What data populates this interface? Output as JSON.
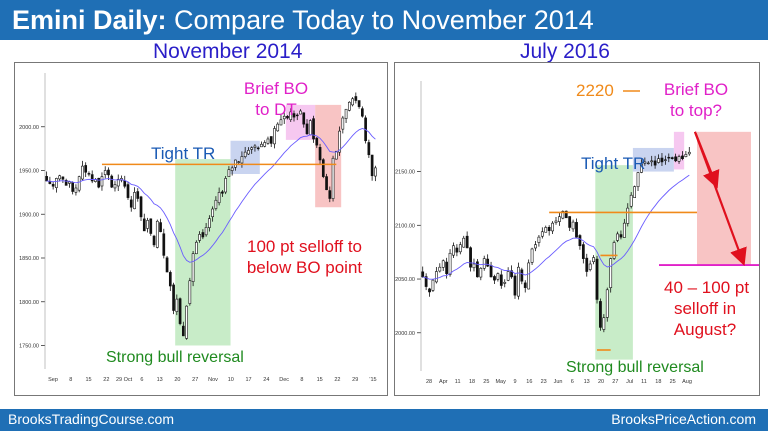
{
  "header": {
    "title_bold": "Emini Daily:",
    "title_rest": " Compare Today to November 2014",
    "left_subtitle": "November 2014",
    "right_subtitle": "July 2016"
  },
  "footer": {
    "left": "BrooksTradingCourse.com",
    "right": "BrooksPriceAction.com"
  },
  "colors": {
    "brand_blue": "#1f6fb5",
    "subtitle_blue": "#2a1ec8",
    "annotation_red": "#e0101e",
    "annotation_green": "#1f8a1f",
    "annotation_magenta": "#e020c8",
    "annotation_orange": "#f08a1a",
    "tight_tr_blue": "#1a5ab4"
  },
  "annotations": {
    "left": {
      "brief_bo": "Brief BO\nto DT",
      "tight_tr": "Tight TR",
      "selloff": "100 pt selloff to\nbelow BO point",
      "bull_reversal": "Strong bull reversal"
    },
    "right": {
      "level": "2220",
      "brief_bo": "Brief BO\nto top?",
      "tight_tr": "Tight TR",
      "selloff": "40 – 100 pt\nselloff in\nAugust?",
      "bull_reversal": "Strong bull reversal"
    }
  },
  "chart_data": [
    {
      "type": "candlestick",
      "title": "November 2014",
      "y_ticks": [
        1750,
        1800,
        1850,
        1900,
        1950,
        2000
      ],
      "ylim": [
        1730,
        2050
      ],
      "x_tick_labels": [
        "Sep",
        "8",
        "15",
        "22",
        "29 Oct",
        "6",
        "13",
        "20",
        "27",
        "Nov",
        "10",
        "17",
        "24",
        "Dec",
        "8",
        "15",
        "22",
        "29",
        "'15"
      ],
      "breakout_level": 1957,
      "closes": [
        1938,
        1935,
        1932,
        1941,
        1944,
        1940,
        1933,
        1937,
        1926,
        1930,
        1943,
        1955,
        1948,
        1946,
        1938,
        1940,
        1931,
        1943,
        1950,
        1945,
        1931,
        1934,
        1940,
        1941,
        1932,
        1919,
        1908,
        1925,
        1918,
        1897,
        1881,
        1893,
        1878,
        1865,
        1892,
        1880,
        1853,
        1834,
        1818,
        1790,
        1803,
        1775,
        1761,
        1795,
        1824,
        1855,
        1868,
        1877,
        1874,
        1885,
        1895,
        1906,
        1916,
        1925,
        1924,
        1941,
        1951,
        1953,
        1962,
        1960,
        1966,
        1971,
        1973,
        1976,
        1978,
        1975,
        1980,
        1982,
        1986,
        1981,
        1998,
        2003,
        2008,
        2012,
        2010,
        2017,
        2011,
        2013,
        2018,
        2003,
        1992,
        2007,
        1986,
        1979,
        1962,
        1943,
        1928,
        1918,
        1964,
        1972,
        1995,
        2010,
        2020,
        2028,
        2032,
        2030,
        2023,
        2012,
        1984,
        1968,
        1944,
        1953
      ]
    },
    {
      "type": "candlestick",
      "title": "July 2016",
      "y_ticks": [
        2000,
        2050,
        2100,
        2150
      ],
      "ylim": [
        1970,
        2225
      ],
      "x_tick_labels": [
        "28",
        "Apr",
        "11",
        "18",
        "25",
        "May",
        "9",
        "16",
        "23",
        "Jun",
        "6",
        "13",
        "20",
        "27",
        "Jul",
        "11",
        "18",
        "25",
        "Aug"
      ],
      "level_2220": 2220,
      "orange_levels": [
        2112,
        2072
      ],
      "projection_low": 2063,
      "closes": [
        2052,
        2043,
        2038,
        2049,
        2057,
        2061,
        2067,
        2055,
        2074,
        2081,
        2075,
        2082,
        2088,
        2079,
        2061,
        2064,
        2052,
        2060,
        2069,
        2062,
        2052,
        2049,
        2055,
        2044,
        2047,
        2057,
        2052,
        2035,
        2061,
        2048,
        2042,
        2065,
        2078,
        2082,
        2089,
        2094,
        2098,
        2095,
        2102,
        2104,
        2108,
        2113,
        2107,
        2098,
        2103,
        2089,
        2081,
        2069,
        2057,
        2064,
        2070,
        2031,
        2005,
        2014,
        2040,
        2069,
        2084,
        2092,
        2089,
        2102,
        2116,
        2128,
        2136,
        2149,
        2157,
        2159,
        2158,
        2160,
        2156,
        2162,
        2159,
        2161,
        2163,
        2162,
        2160,
        2164,
        2162,
        2166,
        2168
      ]
    }
  ]
}
